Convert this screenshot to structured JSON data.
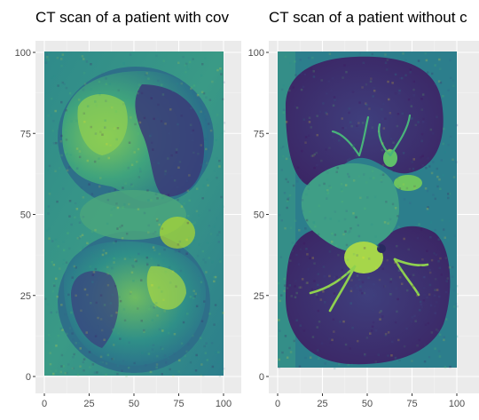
{
  "chart_data": [
    {
      "type": "heatmap",
      "title": "CT scan of a patient with cov",
      "xlabel": "",
      "ylabel": "",
      "xlim": [
        0,
        100
      ],
      "ylim": [
        0,
        100
      ],
      "x_ticks": [
        "0",
        "25",
        "50",
        "75",
        "100"
      ],
      "y_ticks": [
        "0",
        "25",
        "50",
        "75",
        "100"
      ],
      "colormap": "viridis",
      "grid": true,
      "panel_background": "#ebebeb"
    },
    {
      "type": "heatmap",
      "title": "CT scan of a patient without c",
      "xlabel": "",
      "ylabel": "",
      "xlim": [
        0,
        100
      ],
      "ylim": [
        0,
        100
      ],
      "x_ticks": [
        "0",
        "25",
        "50",
        "75",
        "100"
      ],
      "y_ticks": [
        "0",
        "25",
        "50",
        "75",
        "100"
      ],
      "colormap": "viridis",
      "grid": true,
      "panel_background": "#ebebeb"
    }
  ],
  "colors": {
    "viridis_dark": "#440154",
    "viridis_purple": "#3b2f6e",
    "viridis_teal": "#2c7e8c",
    "viridis_green": "#3fae7a",
    "viridis_yellow": "#b8de29"
  }
}
